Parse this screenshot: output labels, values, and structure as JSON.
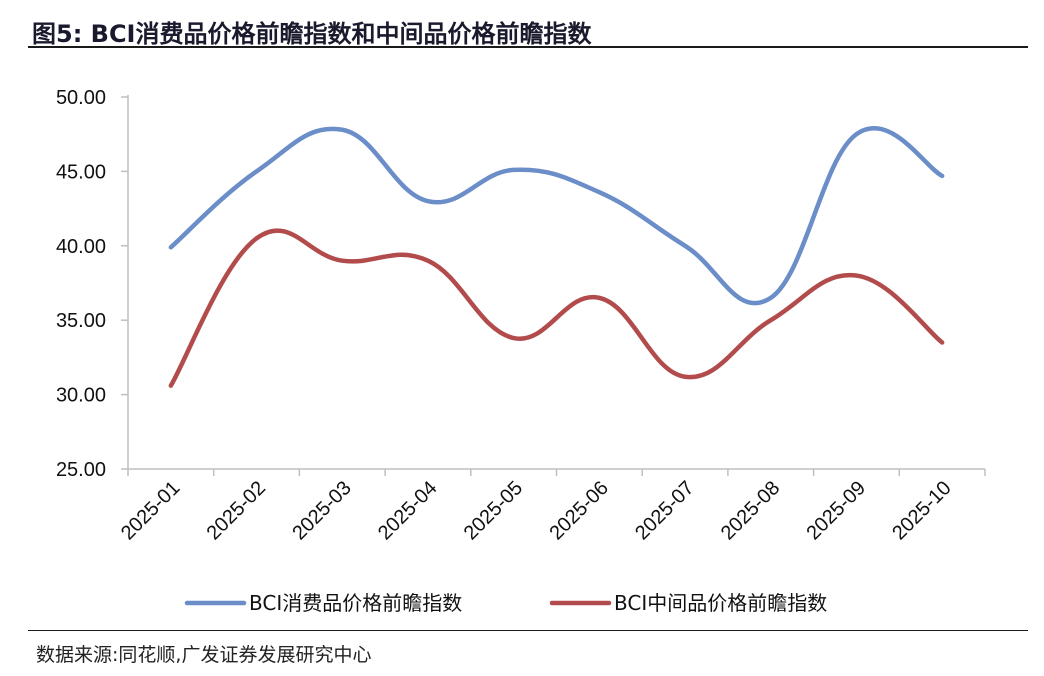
{
  "header": {
    "title": "图5:  BCI消费品价格前瞻指数和中间品价格前瞻指数"
  },
  "footer": {
    "source": "数据来源:同花顺,广发证券发展研究中心"
  },
  "colors": {
    "series1": "#6b8ec9",
    "series2": "#b24c4c",
    "axis": "#bfbfbf"
  },
  "chart_data": {
    "type": "line",
    "title": "",
    "xlabel": "",
    "ylabel": "",
    "categories": [
      "2025-01",
      "2025-02",
      "2025-03",
      "2025-04",
      "2025-05",
      "2025-06",
      "2025-07",
      "2025-08",
      "2025-09",
      "2025-10"
    ],
    "yticks": [
      "25.00",
      "30.00",
      "35.00",
      "40.00",
      "45.00",
      "50.00"
    ],
    "ylim": [
      25,
      50
    ],
    "grid": false,
    "legend_position": "bottom",
    "smooth": true,
    "series": [
      {
        "name": "BCI消费品价格前瞻指数",
        "values": [
          39.9,
          45.0,
          47.8,
          43.0,
          45.1,
          43.6,
          40.0,
          36.5,
          47.5,
          44.7
        ]
      },
      {
        "name": "BCI中间品价格前瞻指数",
        "values": [
          30.6,
          40.5,
          39.0,
          39.0,
          33.8,
          36.5,
          31.2,
          35.0,
          38.0,
          33.5
        ]
      }
    ]
  }
}
